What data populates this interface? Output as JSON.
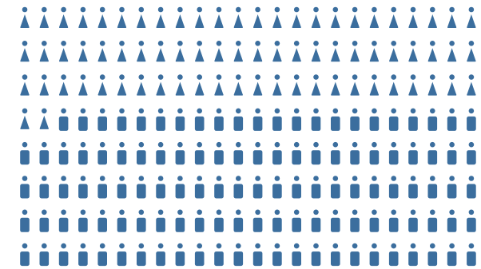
{
  "chart_data": {
    "type": "pictogram",
    "rows": 8,
    "columns": 24,
    "fill_order": "row-major",
    "total": 192,
    "series": [
      {
        "icon": "female-person-icon",
        "count": 74,
        "color": "#3b6e9e"
      },
      {
        "icon": "male-person-icon",
        "count": 118,
        "color": "#3b6e9e"
      }
    ],
    "title": "",
    "legend": "none",
    "grid": false
  }
}
